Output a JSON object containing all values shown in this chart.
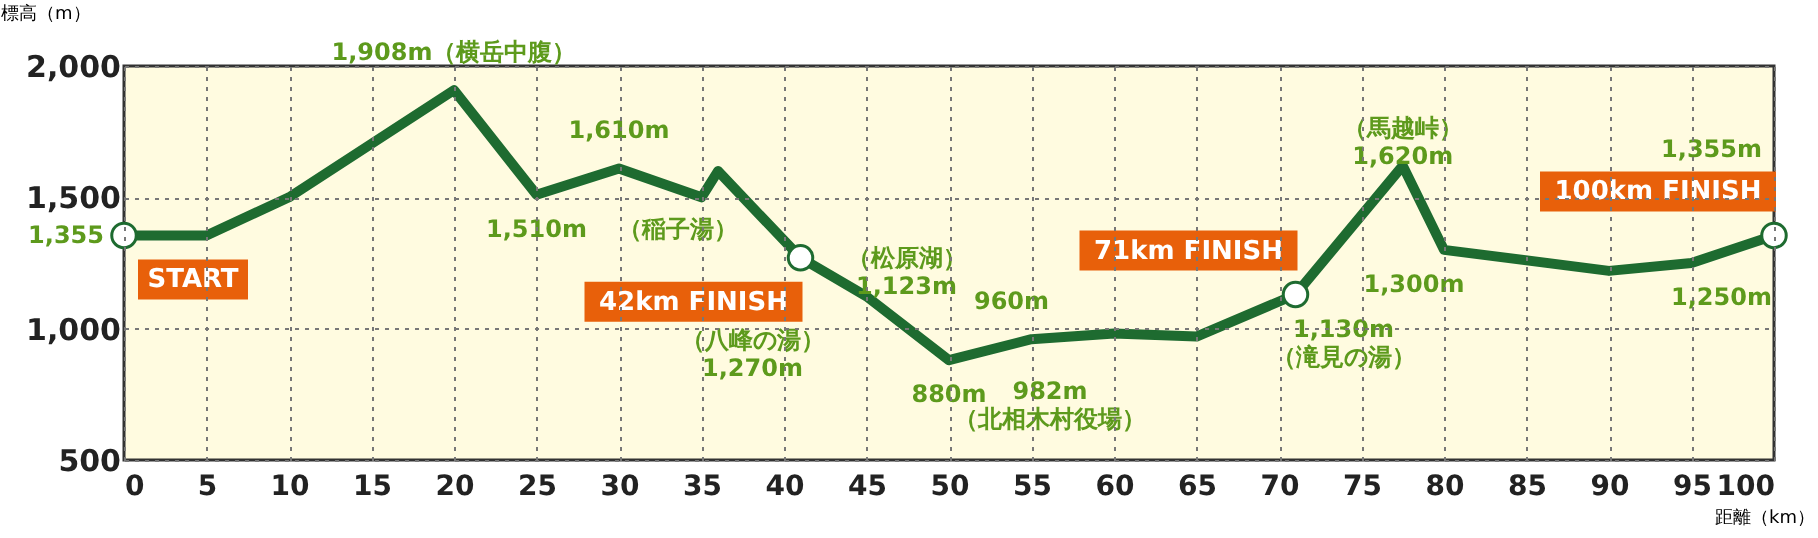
{
  "chart_data": {
    "type": "line",
    "xlabel": "距離（km）",
    "ylabel": "標高（m）",
    "xlim": [
      0,
      100
    ],
    "ylim": [
      500,
      2000
    ],
    "xticks": [
      0,
      5,
      10,
      15,
      20,
      25,
      30,
      35,
      40,
      45,
      50,
      55,
      60,
      65,
      70,
      75,
      80,
      85,
      90,
      95,
      100
    ],
    "yticks": [
      500,
      {
        "value": 1000,
        "label": "1,000"
      },
      {
        "value": 1500,
        "label": "1,500"
      },
      {
        "value": 2000,
        "label": "2,000"
      }
    ],
    "grid": true,
    "x": [
      0,
      5,
      10,
      20,
      25,
      30,
      35,
      36,
      41,
      45,
      50,
      55,
      60,
      65,
      71,
      77.5,
      80,
      90,
      95,
      100
    ],
    "series": [
      {
        "color": "#1e6b30",
        "marker": "none",
        "values": [
          1355,
          1355,
          1500,
          1908,
          1510,
          1610,
          1500,
          1600,
          1270,
          1123,
          880,
          960,
          982,
          970,
          1130,
          1620,
          1300,
          1220,
          1250,
          1355
        ],
        "value_labels": [
          "1,355",
          null,
          null,
          "1,908m（横岳中腹）",
          "1,510m",
          "1,610m",
          null,
          "（稲子湯）",
          "（八峰の湯）\n1,270m",
          "（松原湖）\n1,123m",
          "880m",
          "960m",
          "982m\n（北相木村役場）",
          null,
          "1,130m\n（滝見の湯）",
          "（馬越峠）\n1,620m",
          "1,300m",
          null,
          "1,250m",
          "1,355m"
        ]
      },
      {
        "type": "scatter",
        "color": "#1e6b30",
        "marker": "circle",
        "x": [
          0,
          41,
          71,
          100
        ],
        "values": [
          1355,
          1270,
          1130,
          1355
        ]
      }
    ],
    "annotations": [
      {
        "text": "START",
        "x": 0,
        "y": 1355
      },
      {
        "text": "42km FINISH",
        "x": 41,
        "y": 1270
      },
      {
        "text": "71km FINISH",
        "x": 71,
        "y": 1130
      },
      {
        "text": "100km FINISH",
        "x": 100,
        "y": 1355
      }
    ]
  }
}
